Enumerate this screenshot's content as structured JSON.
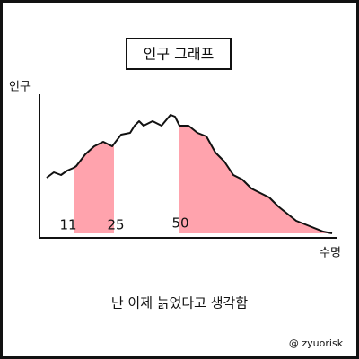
{
  "title": "인구 그래프",
  "y_axis_label": "인구",
  "x_axis_label": "수명",
  "markers": [
    "11",
    "25",
    "50"
  ],
  "caption": "난 이제 늙었다고 생각함",
  "credit": "@ zyuorisk"
}
